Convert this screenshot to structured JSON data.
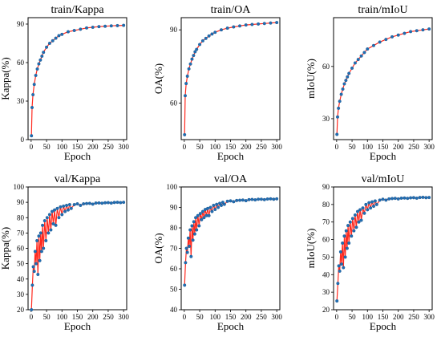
{
  "colors": {
    "line": "#ff2a1f",
    "marker": "#1f6fb4",
    "marker_edge": "#1a4f86"
  },
  "chart_data": [
    {
      "type": "line",
      "title": "train/Kappa",
      "xlabel": "Epoch",
      "ylabel": "Kappa(%)",
      "xlim": [
        -10,
        310
      ],
      "ylim": [
        0,
        95
      ],
      "xticks": [
        0,
        50,
        100,
        150,
        200,
        250,
        300
      ],
      "yticks": [
        0,
        30,
        60,
        90
      ],
      "series": [
        {
          "x": [
            1,
            3,
            6,
            10,
            15,
            20,
            25,
            30,
            35,
            40,
            50,
            60,
            70,
            80,
            90,
            100,
            120,
            140,
            160,
            180,
            200,
            220,
            240,
            260,
            280,
            300
          ],
          "values": [
            3,
            25,
            35,
            43,
            50,
            55,
            59,
            62,
            65,
            68,
            72,
            75,
            77,
            79,
            81,
            82,
            84,
            85,
            86,
            87,
            87.5,
            88,
            88.3,
            88.6,
            88.8,
            89
          ]
        }
      ]
    },
    {
      "type": "line",
      "title": "train/OA",
      "xlabel": "Epoch",
      "ylabel": "OA(%)",
      "xlim": [
        -10,
        310
      ],
      "ylim": [
        45,
        95
      ],
      "xticks": [
        0,
        50,
        100,
        150,
        200,
        250,
        300
      ],
      "yticks": [
        60,
        90
      ],
      "series": [
        {
          "x": [
            1,
            3,
            6,
            10,
            15,
            20,
            25,
            30,
            35,
            40,
            50,
            60,
            70,
            80,
            90,
            100,
            120,
            140,
            160,
            180,
            200,
            220,
            240,
            260,
            280,
            300
          ],
          "values": [
            47,
            63,
            68,
            71,
            74,
            76,
            78,
            79.5,
            81,
            82,
            84,
            85.5,
            86.5,
            87.5,
            88.3,
            89,
            90,
            90.7,
            91.2,
            91.6,
            92,
            92.2,
            92.4,
            92.6,
            92.8,
            93
          ]
        }
      ]
    },
    {
      "type": "line",
      "title": "train/mIoU",
      "xlabel": "Epoch",
      "ylabel": "mIoU(%)",
      "xlim": [
        -10,
        310
      ],
      "ylim": [
        18,
        88
      ],
      "xticks": [
        0,
        50,
        100,
        150,
        200,
        250,
        300
      ],
      "yticks": [
        30,
        60
      ],
      "series": [
        {
          "x": [
            1,
            3,
            6,
            10,
            15,
            20,
            25,
            30,
            35,
            40,
            50,
            60,
            70,
            80,
            90,
            100,
            120,
            140,
            160,
            180,
            200,
            220,
            240,
            260,
            280,
            300
          ],
          "values": [
            21,
            31,
            36,
            40,
            44,
            47,
            50,
            52,
            54,
            56,
            59,
            62,
            64,
            66,
            68,
            70,
            72,
            74,
            75.5,
            77,
            78,
            79,
            80,
            80.5,
            81,
            81.5
          ]
        }
      ]
    },
    {
      "type": "line",
      "title": "val/Kappa",
      "xlabel": "Epoch",
      "ylabel": "Kappa(%)",
      "xlim": [
        -10,
        310
      ],
      "ylim": [
        20,
        100
      ],
      "xticks": [
        0,
        50,
        100,
        150,
        200,
        250,
        300
      ],
      "yticks": [
        20,
        30,
        40,
        50,
        60,
        70,
        80,
        90,
        100
      ],
      "series": [
        {
          "x": [
            1,
            4,
            7,
            10,
            13,
            16,
            19,
            22,
            25,
            28,
            31,
            34,
            37,
            40,
            44,
            48,
            52,
            56,
            60,
            64,
            68,
            72,
            76,
            80,
            85,
            90,
            95,
            100,
            105,
            110,
            115,
            120,
            125,
            130,
            140,
            150,
            160,
            170,
            180,
            190,
            200,
            210,
            220,
            230,
            240,
            250,
            260,
            270,
            280,
            290,
            300
          ],
          "values": [
            20,
            36,
            48,
            45,
            58,
            50,
            65,
            43,
            68,
            52,
            70,
            58,
            75,
            60,
            78,
            65,
            80,
            70,
            82,
            72,
            84,
            76,
            85,
            75,
            86,
            80,
            87,
            82,
            87.5,
            84,
            88,
            85,
            88.5,
            86,
            88.5,
            89,
            88,
            89,
            89.2,
            89.3,
            88.8,
            89.5,
            89.6,
            89.4,
            89.7,
            89.8,
            89.5,
            89.9,
            90,
            89.8,
            90
          ]
        }
      ]
    },
    {
      "type": "line",
      "title": "val/OA",
      "xlabel": "Epoch",
      "ylabel": "OA(%)",
      "xlim": [
        -10,
        310
      ],
      "ylim": [
        40,
        100
      ],
      "xticks": [
        0,
        50,
        100,
        150,
        200,
        250,
        300
      ],
      "yticks": [
        40,
        50,
        60,
        70,
        80,
        90,
        100
      ],
      "series": [
        {
          "x": [
            1,
            4,
            7,
            10,
            13,
            16,
            19,
            22,
            25,
            28,
            31,
            34,
            37,
            40,
            44,
            48,
            52,
            56,
            60,
            64,
            68,
            72,
            76,
            80,
            85,
            90,
            95,
            100,
            105,
            110,
            115,
            120,
            125,
            130,
            140,
            150,
            160,
            170,
            180,
            190,
            200,
            210,
            220,
            230,
            240,
            250,
            260,
            270,
            280,
            290,
            300
          ],
          "values": [
            52,
            63,
            70,
            68,
            75,
            71,
            79,
            66,
            81,
            74,
            83,
            77,
            85,
            79,
            86,
            81,
            87,
            84,
            88,
            85,
            89,
            86,
            89.5,
            86,
            90,
            88,
            91,
            89,
            91.5,
            90,
            92,
            91,
            92.5,
            91.5,
            93,
            93.2,
            92.8,
            93.4,
            93.5,
            93.6,
            93.3,
            93.8,
            93.9,
            93.7,
            94,
            94,
            93.8,
            94.1,
            94.2,
            94,
            94.2
          ]
        }
      ]
    },
    {
      "type": "line",
      "title": "val/mIoU",
      "xlabel": "Epoch",
      "ylabel": "mIoU(%)",
      "xlim": [
        -10,
        310
      ],
      "ylim": [
        20,
        90
      ],
      "xticks": [
        0,
        50,
        100,
        150,
        200,
        250,
        300
      ],
      "yticks": [
        20,
        30,
        40,
        50,
        60,
        70,
        80,
        90
      ],
      "series": [
        {
          "x": [
            1,
            4,
            7,
            10,
            13,
            16,
            19,
            22,
            25,
            28,
            31,
            34,
            37,
            40,
            44,
            48,
            52,
            56,
            60,
            64,
            68,
            72,
            76,
            80,
            85,
            90,
            95,
            100,
            105,
            110,
            115,
            120,
            125,
            130,
            140,
            150,
            160,
            170,
            180,
            190,
            200,
            210,
            220,
            230,
            240,
            250,
            260,
            270,
            280,
            290,
            300
          ],
          "values": [
            25,
            35,
            45,
            42,
            53,
            46,
            58,
            44,
            62,
            50,
            65,
            55,
            68,
            58,
            70,
            62,
            72,
            65,
            74,
            67,
            76,
            70,
            77,
            71,
            78,
            75,
            80,
            77,
            81,
            78,
            81.5,
            79,
            82,
            80,
            82.5,
            83,
            82.5,
            83.2,
            83.4,
            83.5,
            83.2,
            83.6,
            83.7,
            83.5,
            83.8,
            83.9,
            83.6,
            84,
            84.1,
            83.9,
            84
          ]
        }
      ]
    }
  ]
}
